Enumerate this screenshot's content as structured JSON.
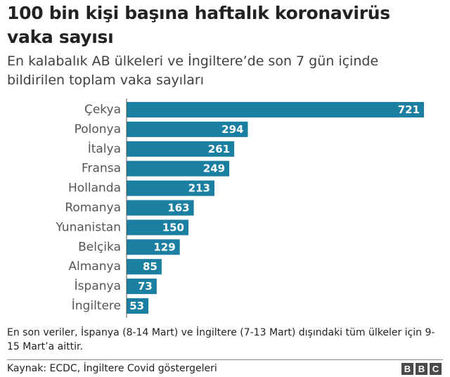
{
  "title": "100 bin kişi başına haftalık koronavirüs vaka sayısı",
  "subtitle": "En kalabalık AB ülkeleri ve İngiltere’de son 7 gün içinde bildirilen toplam vaka sayıları",
  "footnote": "En son veriler, İspanya (8-14 Mart) ve İngiltere (7-13 Mart) dışındaki tüm ülkeler için 9-15 Mart’a aittir.",
  "source": "Kaynak: ECDC, İngiltere Covid göstergeleri",
  "logo": [
    "B",
    "B",
    "C"
  ],
  "colors": {
    "bar": "#1a7fa0",
    "bar_label": "#ffffff",
    "category_label": "#555555",
    "axis": "#555555"
  },
  "chart_data": {
    "type": "bar",
    "orientation": "horizontal",
    "categories": [
      "Çekya",
      "Polonya",
      "İtalya",
      "Fransa",
      "Hollanda",
      "Romanya",
      "Yunanistan",
      "Belçika",
      "Almanya",
      "İspanya",
      "İngiltere"
    ],
    "values": [
      721,
      294,
      261,
      249,
      213,
      163,
      150,
      129,
      85,
      73,
      53
    ],
    "title": "",
    "xlabel": "",
    "ylabel": "",
    "xlim": [
      0,
      721
    ],
    "grid": false,
    "data_labels": "inside-end"
  }
}
